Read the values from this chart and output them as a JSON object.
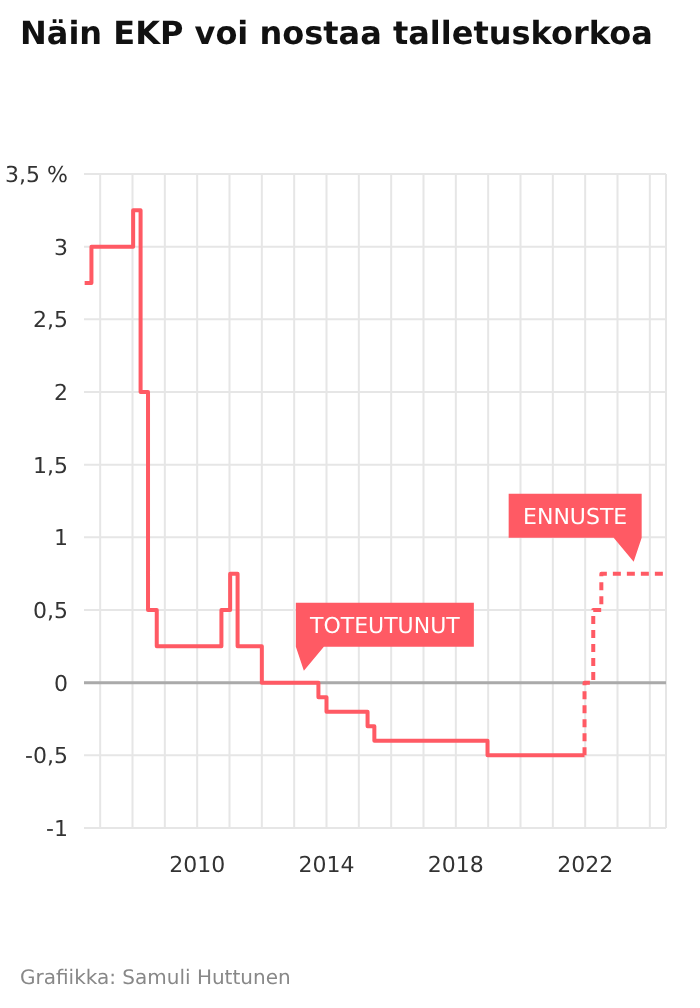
{
  "chart_data": {
    "type": "step",
    "title": "Näin EKP voi nostaa talletuskorkoa",
    "xlim": [
      2006.5,
      2024.5
    ],
    "xticks": [
      {
        "value": 2007,
        "label": null
      },
      {
        "value": 2008,
        "label": null
      },
      {
        "value": 2009,
        "label": null
      },
      2010,
      {
        "value": 2011,
        "label": null
      },
      {
        "value": 2012,
        "label": null
      },
      {
        "value": 2013,
        "label": null
      },
      2014,
      {
        "value": 2015,
        "label": null
      },
      {
        "value": 2016,
        "label": null
      },
      {
        "value": 2017,
        "label": null
      },
      2018,
      {
        "value": 2019,
        "label": null
      },
      {
        "value": 2020,
        "label": null
      },
      {
        "value": 2021,
        "label": null
      },
      2022,
      {
        "value": 2023,
        "label": null
      },
      {
        "value": 2024,
        "label": null
      }
    ],
    "ylim": [
      -1,
      3.5
    ],
    "yticks": [
      {
        "value": -1,
        "label": "-1"
      },
      {
        "value": -0.5,
        "label": "-0,5"
      },
      0,
      {
        "value": 0.5,
        "label": "0,5"
      },
      1,
      {
        "value": 1.5,
        "label": "1,5"
      },
      2,
      {
        "value": 2.5,
        "label": "2,5"
      },
      3,
      {
        "value": 3.5,
        "label": "3,5 %"
      }
    ],
    "grid": true,
    "ref_lines": [
      {
        "axis": "y",
        "value": 0,
        "color": "#aaaaaa"
      }
    ],
    "series": [
      {
        "color": "#ff5a64",
        "line_style": "solid",
        "x": [
          2006.52,
          2006.73,
          2008.02,
          2008.25,
          2008.48,
          2008.75,
          2010.75,
          2011.02,
          2011.25,
          2012.0,
          2013.75,
          2014.0,
          2015.27,
          2015.48,
          2018.98,
          2021.98
        ],
        "values": [
          2.75,
          3,
          3.25,
          2,
          0.5,
          0.25,
          0.5,
          0.75,
          0.25,
          0,
          -0.1,
          -0.2,
          -0.3,
          -0.4,
          -0.5,
          -0.5
        ]
      },
      {
        "color": "#ff5a64",
        "line_style": "dashed",
        "x": [
          2021.98,
          2021.98,
          2022.25,
          2022.5,
          2024.5
        ],
        "values": [
          -0.5,
          0,
          0.5,
          0.75,
          0.75
        ]
      }
    ],
    "annotations": [
      {
        "text": "TOTEUTUNUT",
        "x": 2013.3,
        "y": 0
      },
      {
        "text": "ENNUSTE",
        "x": 2023.5,
        "y": 0.75
      },
      "Grafiikka: Samuli Huttunen"
    ]
  }
}
